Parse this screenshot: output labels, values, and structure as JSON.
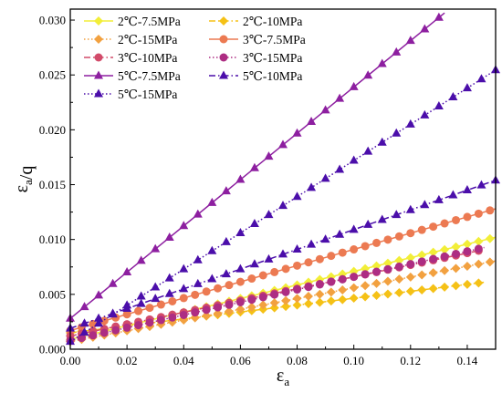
{
  "chart_data": {
    "type": "line",
    "xlabel": "εa",
    "ylabel": "εa/q",
    "xlim": [
      0,
      0.15
    ],
    "ylim": [
      0,
      0.031
    ],
    "x_ticks": [
      "0.00",
      "0.02",
      "0.04",
      "0.06",
      "0.08",
      "0.10",
      "0.12",
      "0.14"
    ],
    "y_ticks": [
      "0.000",
      "0.005",
      "0.010",
      "0.015",
      "0.020",
      "0.025",
      "0.030"
    ],
    "legend_position": "top-left",
    "grid": false,
    "series": [
      {
        "name": "2℃-7.5MPa",
        "color": "#f2ee38",
        "marker": "diamond",
        "dash": "solid",
        "intercept": 0.0009,
        "slope": 0.062,
        "x_end": 0.15
      },
      {
        "name": "2℃-10MPa",
        "color": "#f5c116",
        "marker": "diamond",
        "dash": "dashdot",
        "intercept": 0.0015,
        "slope": 0.0315,
        "x_end": 0.146
      },
      {
        "name": "2℃-15MPa",
        "color": "#f2a140",
        "marker": "diamond",
        "dash": "dotted",
        "intercept": 0.0007,
        "slope": 0.049,
        "x_end": 0.15
      },
      {
        "name": "3℃-7.5MPa",
        "color": "#ec7a52",
        "marker": "circle",
        "dash": "solid",
        "intercept": 0.0017,
        "slope": 0.074,
        "x_end": 0.15
      },
      {
        "name": "3℃-10MPa",
        "color": "#d24b6a",
        "marker": "circle",
        "dash": "dashdot",
        "intercept": 0.0012,
        "slope": 0.054,
        "x_end": 0.146
      },
      {
        "name": "3℃-15MPa",
        "color": "#ad2d83",
        "marker": "circle",
        "dash": "dotted",
        "intercept": 0.0008,
        "slope": 0.058,
        "x_end": 0.146
      },
      {
        "name": "5℃-7.5MPa",
        "color": "#8d1fa0",
        "marker": "triangle",
        "dash": "solid",
        "intercept": 0.0028,
        "slope": 0.211,
        "x_end": 0.132
      },
      {
        "name": "5℃-10MPa",
        "color": "#4b0eaa",
        "marker": "triangle",
        "dash": "dashdot",
        "intercept": 0.0019,
        "slope": 0.09,
        "x_end": 0.15
      },
      {
        "name": "5℃-15MPa",
        "color": "#4b0eaa",
        "marker": "triangle",
        "dash": "dotted",
        "intercept": 0.0007,
        "slope": 0.165,
        "x_end": 0.15
      }
    ]
  }
}
